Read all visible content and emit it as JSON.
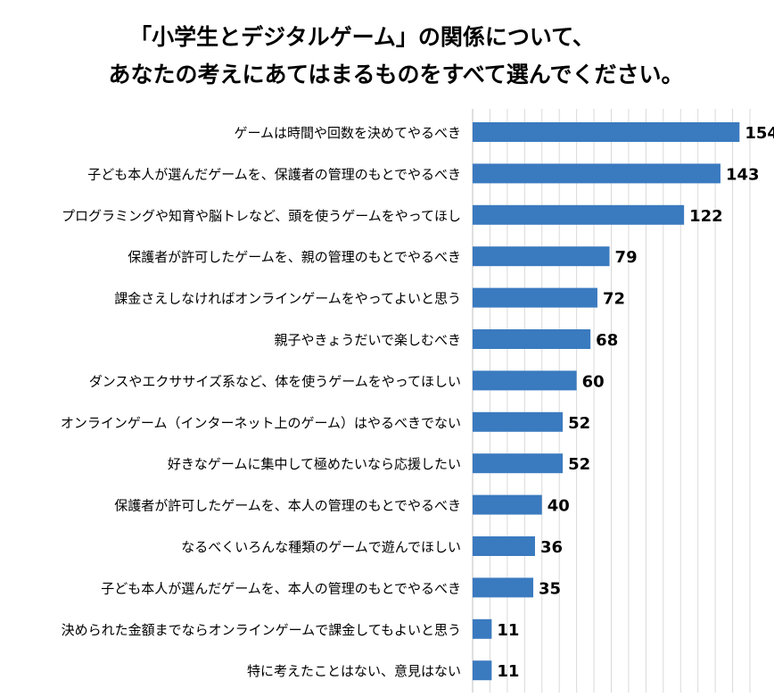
{
  "chart_data": {
    "type": "bar",
    "orientation": "horizontal",
    "title_lines": [
      "「小学生とデジタルゲーム」の関係について、",
      "あなたの考えにあてはまるものをすべて選んでください。"
    ],
    "categories": [
      "ゲームは時間や回数を決めてやるべき",
      "子ども本人が選んだゲームを、保護者の管理のもとでやるべき",
      "プログラミングや知育や脳トレなど、頭を使うゲームをやってほし",
      "保護者が許可したゲームを、親の管理のもとでやるべき",
      "課金さえしなければオンラインゲームをやってよいと思う",
      "親子やきょうだいで楽しむべき",
      "ダンスやエクササイズ系など、体を使うゲームをやってほしい",
      "オンラインゲーム（インターネット上のゲーム）はやるべきでない",
      "好きなゲームに集中して極めたいなら応援したい",
      "保護者が許可したゲームを、本人の管理のもとでやるべき",
      "なるべくいろんな種類のゲームで遊んでほしい",
      "子ども本人が選んだゲームを、本人の管理のもとでやるべき",
      "決められた金額までならオンラインゲームで課金してもよいと思う",
      "特に考えたことはない、意見はない"
    ],
    "values": [
      154,
      143,
      122,
      79,
      72,
      68,
      60,
      52,
      52,
      40,
      36,
      35,
      11,
      11
    ],
    "xlim": [
      0,
      160
    ],
    "grid": true,
    "legend": "none",
    "bar_color": "#3a7abf",
    "grid_color": "#d9d9d9"
  }
}
